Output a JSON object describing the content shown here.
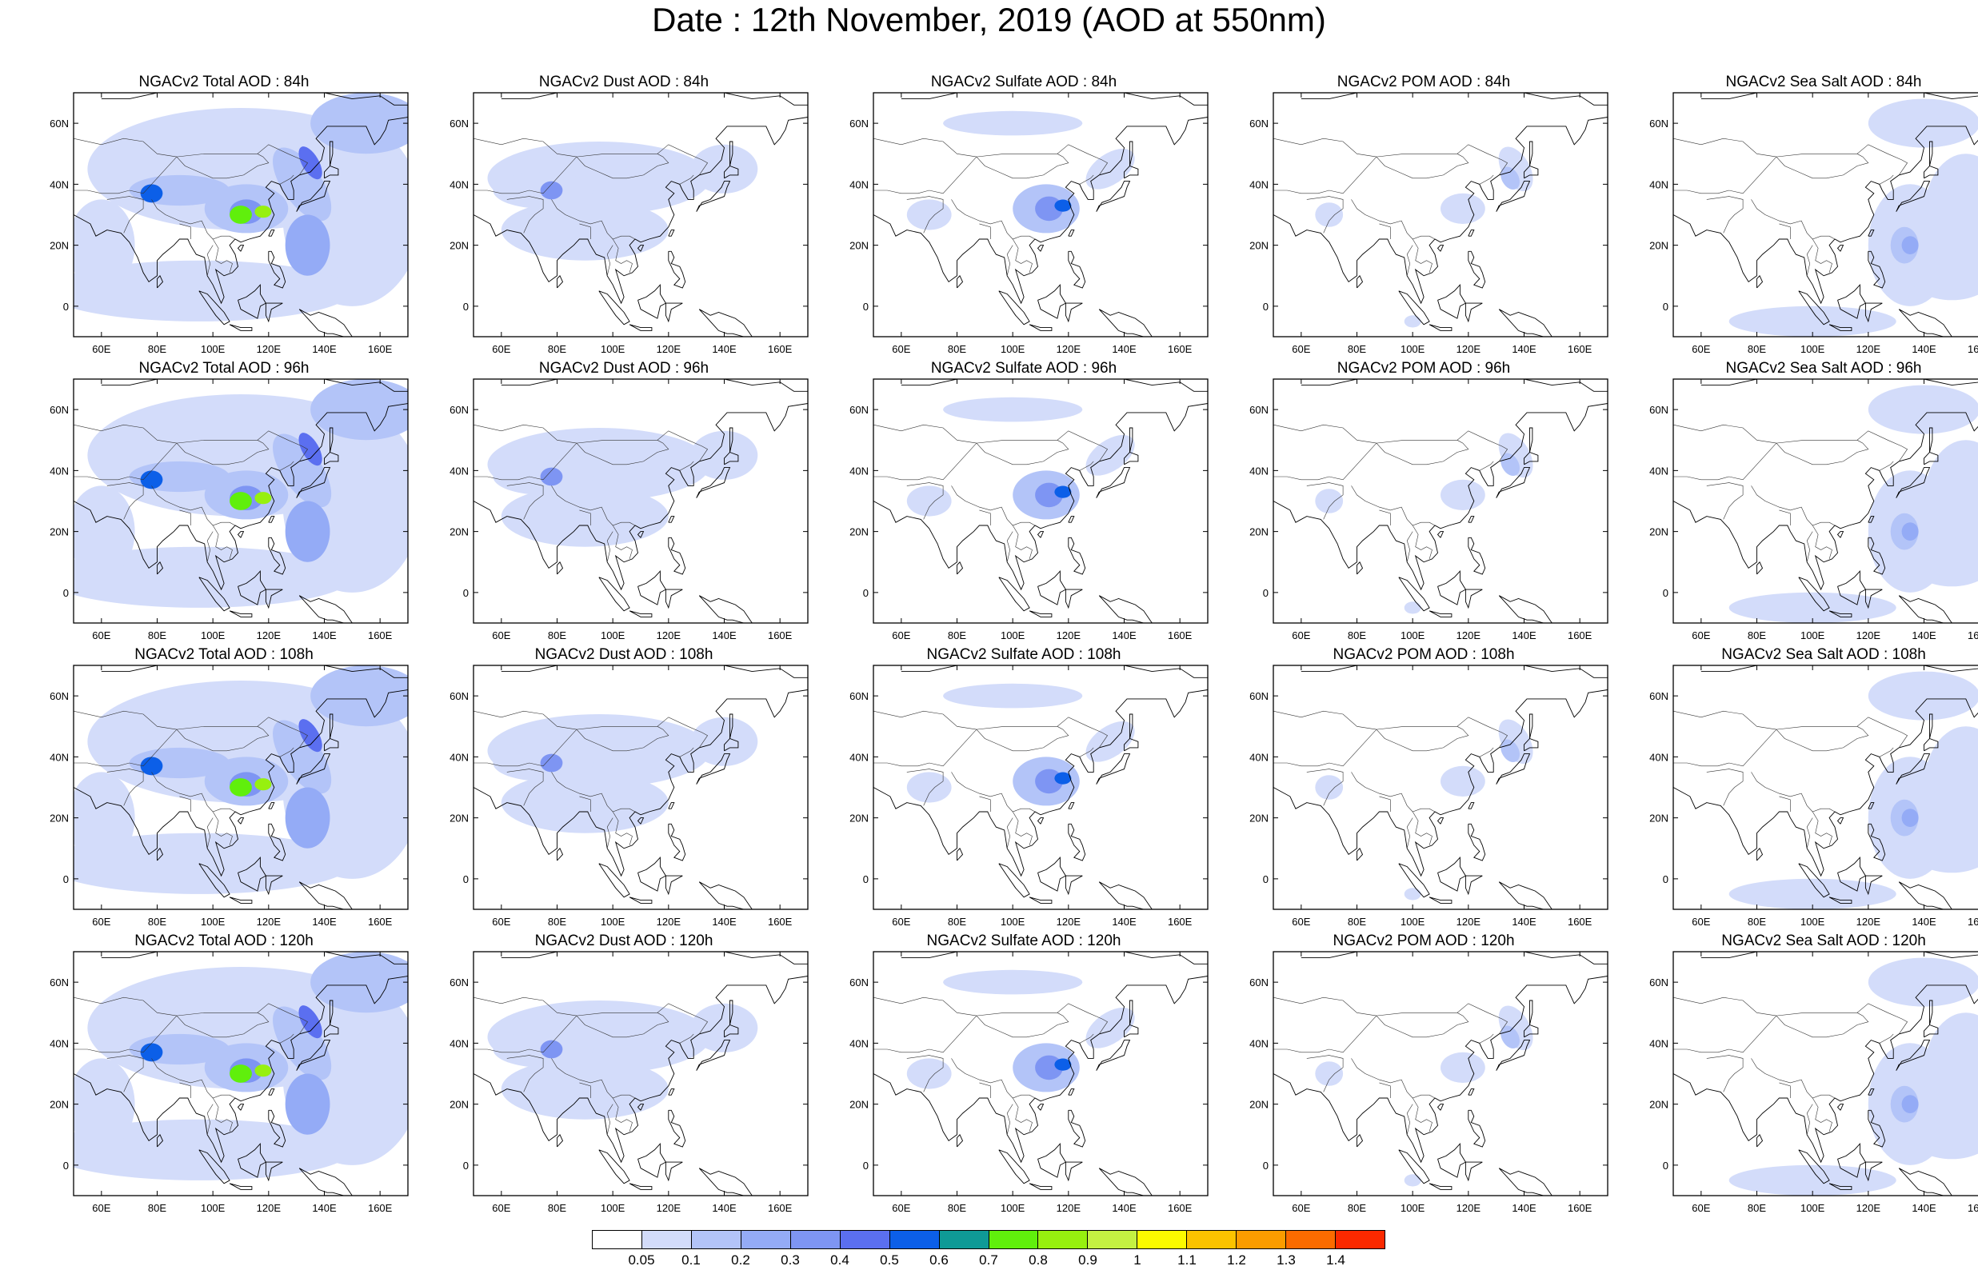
{
  "title": "Date : 12th November, 2019 (AOD at 550nm)",
  "lon_ticks": [
    "60E",
    "80E",
    "100E",
    "120E",
    "140E",
    "160E"
  ],
  "lat_ticks": [
    "60N",
    "40N",
    "20N",
    "0"
  ],
  "colorbar": {
    "colors": [
      "#ffffff",
      "#d3dcfa",
      "#b3c4f8",
      "#94abf6",
      "#7e95f3",
      "#5b6ff0",
      "#0c5fe8",
      "#0f9a96",
      "#60ef0c",
      "#97f00f",
      "#c4f142",
      "#fbfa00",
      "#fbc300",
      "#fb9c00",
      "#fb6b00",
      "#fb2900"
    ],
    "labels": [
      "0.05",
      "0.1",
      "0.2",
      "0.3",
      "0.4",
      "0.5",
      "0.6",
      "0.7",
      "0.8",
      "0.9",
      "1",
      "1.1",
      "1.2",
      "1.3",
      "1.4"
    ]
  },
  "panels": [
    {
      "title": "NGACv2 Total AOD : 84h",
      "species": "total"
    },
    {
      "title": "NGACv2 Dust AOD : 84h",
      "species": "dust"
    },
    {
      "title": "NGACv2 Sulfate AOD : 84h",
      "species": "sulfate"
    },
    {
      "title": "NGACv2 POM AOD : 84h",
      "species": "pom"
    },
    {
      "title": "NGACv2 Sea Salt AOD : 84h",
      "species": "seasalt"
    },
    {
      "title": "NGACv2 Total AOD : 96h",
      "species": "total"
    },
    {
      "title": "NGACv2 Dust AOD : 96h",
      "species": "dust"
    },
    {
      "title": "NGACv2 Sulfate AOD : 96h",
      "species": "sulfate"
    },
    {
      "title": "NGACv2 POM AOD : 96h",
      "species": "pom"
    },
    {
      "title": "NGACv2 Sea Salt AOD : 96h",
      "species": "seasalt"
    },
    {
      "title": "NGACv2 Total AOD : 108h",
      "species": "total"
    },
    {
      "title": "NGACv2 Dust AOD : 108h",
      "species": "dust"
    },
    {
      "title": "NGACv2 Sulfate AOD : 108h",
      "species": "sulfate"
    },
    {
      "title": "NGACv2 POM AOD : 108h",
      "species": "pom"
    },
    {
      "title": "NGACv2 Sea Salt AOD : 108h",
      "species": "seasalt"
    },
    {
      "title": "NGACv2 Total AOD : 120h",
      "species": "total"
    },
    {
      "title": "NGACv2 Dust AOD : 120h",
      "species": "dust"
    },
    {
      "title": "NGACv2 Sulfate AOD : 120h",
      "species": "sulfate"
    },
    {
      "title": "NGACv2 POM AOD : 120h",
      "species": "pom"
    },
    {
      "title": "NGACv2 Sea Salt  AOD : 120h",
      "species": "seasalt"
    }
  ]
}
